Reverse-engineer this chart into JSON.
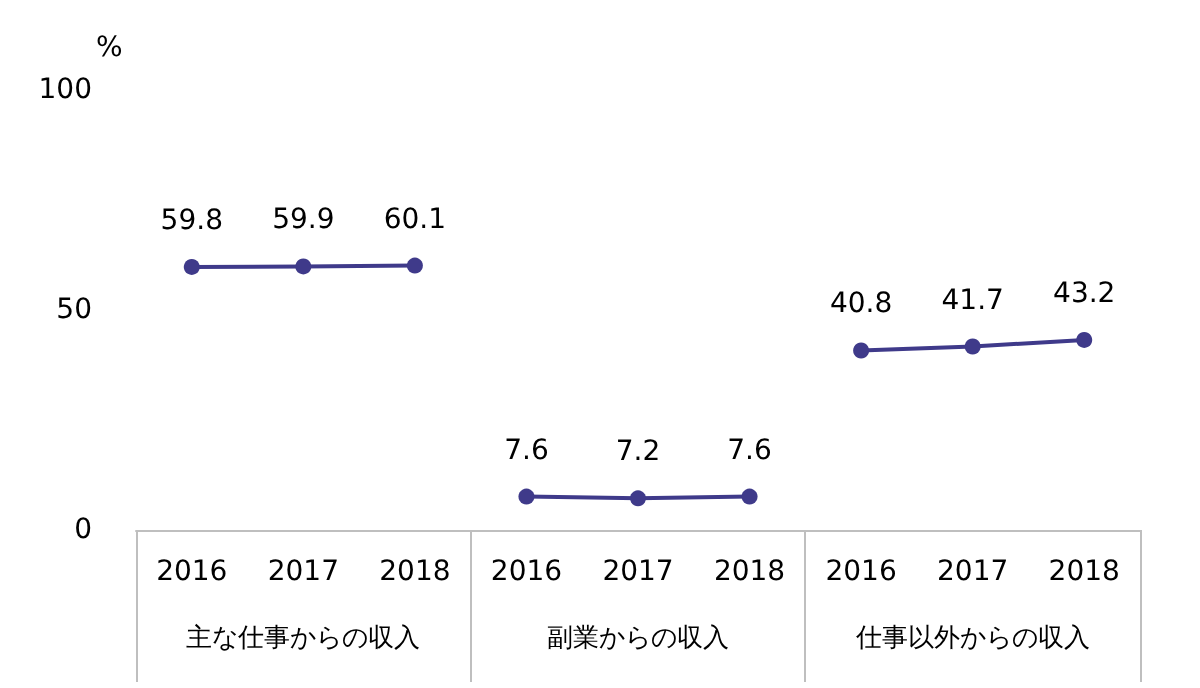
{
  "chart_data": {
    "type": "line",
    "ylabel": "%",
    "categories": [
      "2016",
      "2017",
      "2018",
      "2016",
      "2017",
      "2018",
      "2016",
      "2017",
      "2018"
    ],
    "series": [
      {
        "color": "#3f3a8a",
        "values": [
          59.8,
          59.9,
          60.1,
          null,
          null,
          null,
          null,
          null,
          null
        ]
      },
      {
        "color": "#3f3a8a",
        "values": [
          null,
          null,
          null,
          7.6,
          7.2,
          7.6,
          null,
          null,
          null
        ]
      },
      {
        "color": "#3f3a8a",
        "values": [
          null,
          null,
          null,
          null,
          null,
          null,
          40.8,
          41.7,
          43.2
        ]
      }
    ],
    "annotations": [
      "主な仕事からの収入",
      "副業からの収入",
      "仕事以外からの収入"
    ],
    "ylim": [
      0,
      100
    ],
    "yticks": [
      0,
      50,
      100
    ],
    "grid": false,
    "marker": "circle",
    "data_labels": true
  }
}
